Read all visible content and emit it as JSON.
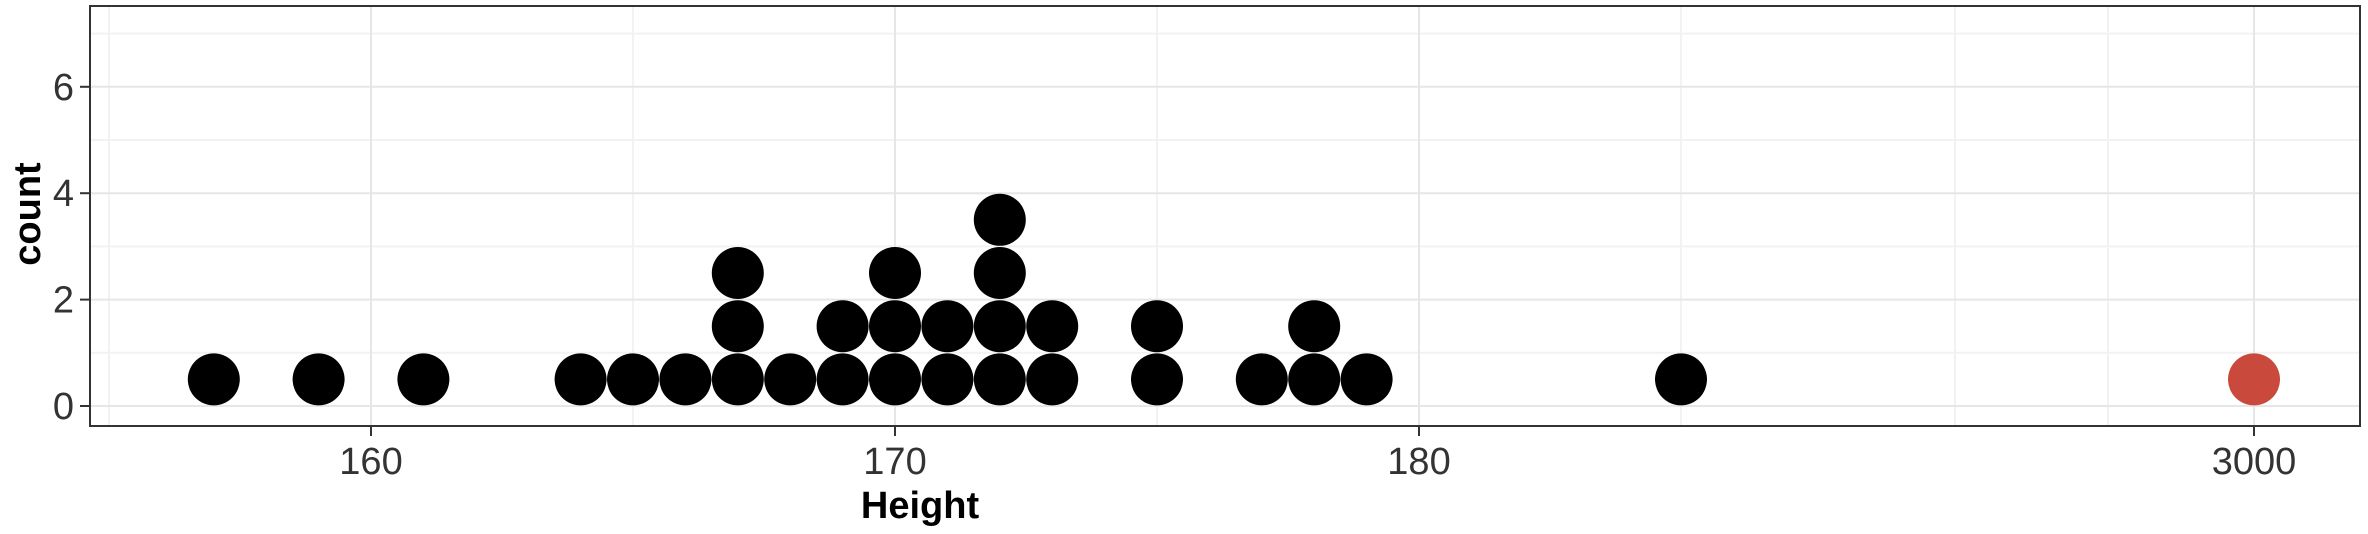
{
  "chart_data": {
    "type": "dotplot",
    "xlabel": "Height",
    "ylabel": "count",
    "y_ticks": [
      "0",
      "2",
      "4",
      "6"
    ],
    "y_tick_values": [
      0,
      2,
      4,
      6
    ],
    "ylim": [
      -0.4,
      7.5
    ],
    "x_ticks": [
      {
        "label": "160",
        "value": 160
      },
      {
        "label": "170",
        "value": 170
      },
      {
        "label": "180",
        "value": 180
      },
      {
        "label": "3000",
        "value": 3000,
        "highlight": true
      }
    ],
    "x_axis_note": "axis is broken between 180 and 3000; the outlier is plotted at the far right",
    "grid": true,
    "points": [
      {
        "x": 157,
        "y": 0.5
      },
      {
        "x": 159,
        "y": 0.5
      },
      {
        "x": 161,
        "y": 0.5
      },
      {
        "x": 164,
        "y": 0.5
      },
      {
        "x": 165,
        "y": 0.5
      },
      {
        "x": 166,
        "y": 0.5
      },
      {
        "x": 167,
        "y": 0.5
      },
      {
        "x": 167,
        "y": 1.5
      },
      {
        "x": 167,
        "y": 2.5
      },
      {
        "x": 168,
        "y": 0.5
      },
      {
        "x": 169,
        "y": 0.5
      },
      {
        "x": 169,
        "y": 1.5
      },
      {
        "x": 170,
        "y": 0.5
      },
      {
        "x": 170,
        "y": 1.5
      },
      {
        "x": 170,
        "y": 2.5
      },
      {
        "x": 171,
        "y": 0.5
      },
      {
        "x": 171,
        "y": 1.5
      },
      {
        "x": 172,
        "y": 0.5
      },
      {
        "x": 172,
        "y": 1.5
      },
      {
        "x": 172,
        "y": 2.5
      },
      {
        "x": 172,
        "y": 3.5
      },
      {
        "x": 173,
        "y": 0.5
      },
      {
        "x": 173,
        "y": 1.5
      },
      {
        "x": 175,
        "y": 0.5
      },
      {
        "x": 175,
        "y": 1.5
      },
      {
        "x": 177,
        "y": 0.5
      },
      {
        "x": 178,
        "y": 0.5
      },
      {
        "x": 178,
        "y": 1.5
      },
      {
        "x": 179,
        "y": 0.5
      },
      {
        "x": 185,
        "y": 0.5
      },
      {
        "x": 3000,
        "y": 0.5,
        "highlight": true
      }
    ],
    "colors": {
      "point": "#000000",
      "highlight": "#c94a3d",
      "grid_major": "#e6e6e6",
      "grid_minor": "#f2f2f2",
      "panel_border": "#333333"
    }
  }
}
